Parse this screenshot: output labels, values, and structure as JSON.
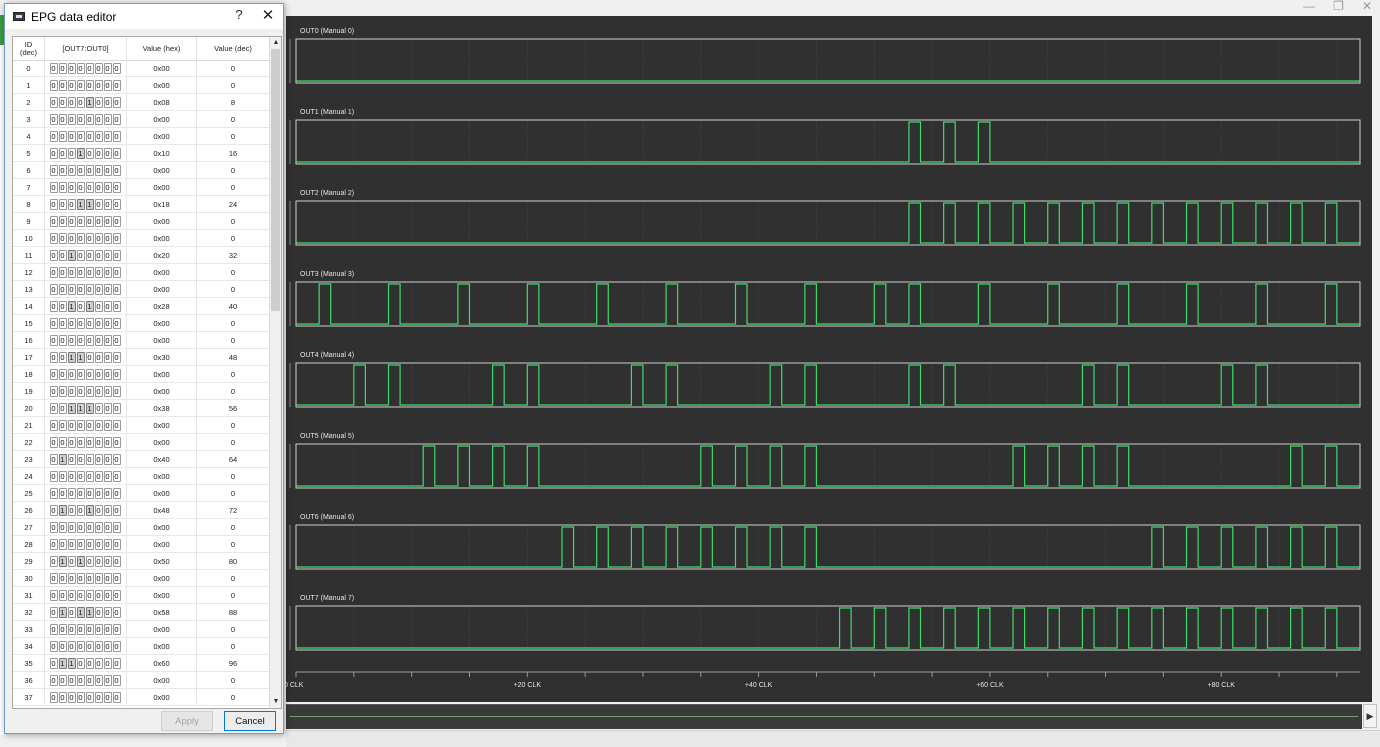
{
  "window": {
    "controls": [
      "—",
      "❐",
      "✕"
    ]
  },
  "dialog": {
    "title": "EPG data editor",
    "help_label": "?",
    "close_label": "✕",
    "columns": {
      "id_top": "ID",
      "id_bottom": "(dec)",
      "bits": "[OUT7:OUT0]",
      "hex": "Value (hex)",
      "dec": "Value (dec)"
    },
    "rows": [
      {
        "id": "0",
        "bits": [
          0,
          0,
          0,
          0,
          0,
          0,
          0,
          0
        ],
        "hex": "0x00",
        "dec": "0"
      },
      {
        "id": "1",
        "bits": [
          0,
          0,
          0,
          0,
          0,
          0,
          0,
          0
        ],
        "hex": "0x00",
        "dec": "0"
      },
      {
        "id": "2",
        "bits": [
          0,
          0,
          0,
          0,
          1,
          0,
          0,
          0
        ],
        "hex": "0x08",
        "dec": "8"
      },
      {
        "id": "3",
        "bits": [
          0,
          0,
          0,
          0,
          0,
          0,
          0,
          0
        ],
        "hex": "0x00",
        "dec": "0"
      },
      {
        "id": "4",
        "bits": [
          0,
          0,
          0,
          0,
          0,
          0,
          0,
          0
        ],
        "hex": "0x00",
        "dec": "0"
      },
      {
        "id": "5",
        "bits": [
          0,
          0,
          0,
          1,
          0,
          0,
          0,
          0
        ],
        "hex": "0x10",
        "dec": "16"
      },
      {
        "id": "6",
        "bits": [
          0,
          0,
          0,
          0,
          0,
          0,
          0,
          0
        ],
        "hex": "0x00",
        "dec": "0"
      },
      {
        "id": "7",
        "bits": [
          0,
          0,
          0,
          0,
          0,
          0,
          0,
          0
        ],
        "hex": "0x00",
        "dec": "0"
      },
      {
        "id": "8",
        "bits": [
          0,
          0,
          0,
          1,
          1,
          0,
          0,
          0
        ],
        "hex": "0x18",
        "dec": "24"
      },
      {
        "id": "9",
        "bits": [
          0,
          0,
          0,
          0,
          0,
          0,
          0,
          0
        ],
        "hex": "0x00",
        "dec": "0"
      },
      {
        "id": "10",
        "bits": [
          0,
          0,
          0,
          0,
          0,
          0,
          0,
          0
        ],
        "hex": "0x00",
        "dec": "0"
      },
      {
        "id": "11",
        "bits": [
          0,
          0,
          1,
          0,
          0,
          0,
          0,
          0
        ],
        "hex": "0x20",
        "dec": "32"
      },
      {
        "id": "12",
        "bits": [
          0,
          0,
          0,
          0,
          0,
          0,
          0,
          0
        ],
        "hex": "0x00",
        "dec": "0"
      },
      {
        "id": "13",
        "bits": [
          0,
          0,
          0,
          0,
          0,
          0,
          0,
          0
        ],
        "hex": "0x00",
        "dec": "0"
      },
      {
        "id": "14",
        "bits": [
          0,
          0,
          1,
          0,
          1,
          0,
          0,
          0
        ],
        "hex": "0x28",
        "dec": "40"
      },
      {
        "id": "15",
        "bits": [
          0,
          0,
          0,
          0,
          0,
          0,
          0,
          0
        ],
        "hex": "0x00",
        "dec": "0"
      },
      {
        "id": "16",
        "bits": [
          0,
          0,
          0,
          0,
          0,
          0,
          0,
          0
        ],
        "hex": "0x00",
        "dec": "0"
      },
      {
        "id": "17",
        "bits": [
          0,
          0,
          1,
          1,
          0,
          0,
          0,
          0
        ],
        "hex": "0x30",
        "dec": "48"
      },
      {
        "id": "18",
        "bits": [
          0,
          0,
          0,
          0,
          0,
          0,
          0,
          0
        ],
        "hex": "0x00",
        "dec": "0"
      },
      {
        "id": "19",
        "bits": [
          0,
          0,
          0,
          0,
          0,
          0,
          0,
          0
        ],
        "hex": "0x00",
        "dec": "0"
      },
      {
        "id": "20",
        "bits": [
          0,
          0,
          1,
          1,
          1,
          0,
          0,
          0
        ],
        "hex": "0x38",
        "dec": "56"
      },
      {
        "id": "21",
        "bits": [
          0,
          0,
          0,
          0,
          0,
          0,
          0,
          0
        ],
        "hex": "0x00",
        "dec": "0"
      },
      {
        "id": "22",
        "bits": [
          0,
          0,
          0,
          0,
          0,
          0,
          0,
          0
        ],
        "hex": "0x00",
        "dec": "0"
      },
      {
        "id": "23",
        "bits": [
          0,
          1,
          0,
          0,
          0,
          0,
          0,
          0
        ],
        "hex": "0x40",
        "dec": "64"
      },
      {
        "id": "24",
        "bits": [
          0,
          0,
          0,
          0,
          0,
          0,
          0,
          0
        ],
        "hex": "0x00",
        "dec": "0"
      },
      {
        "id": "25",
        "bits": [
          0,
          0,
          0,
          0,
          0,
          0,
          0,
          0
        ],
        "hex": "0x00",
        "dec": "0"
      },
      {
        "id": "26",
        "bits": [
          0,
          1,
          0,
          0,
          1,
          0,
          0,
          0
        ],
        "hex": "0x48",
        "dec": "72"
      },
      {
        "id": "27",
        "bits": [
          0,
          0,
          0,
          0,
          0,
          0,
          0,
          0
        ],
        "hex": "0x00",
        "dec": "0"
      },
      {
        "id": "28",
        "bits": [
          0,
          0,
          0,
          0,
          0,
          0,
          0,
          0
        ],
        "hex": "0x00",
        "dec": "0"
      },
      {
        "id": "29",
        "bits": [
          0,
          1,
          0,
          1,
          0,
          0,
          0,
          0
        ],
        "hex": "0x50",
        "dec": "80"
      },
      {
        "id": "30",
        "bits": [
          0,
          0,
          0,
          0,
          0,
          0,
          0,
          0
        ],
        "hex": "0x00",
        "dec": "0"
      },
      {
        "id": "31",
        "bits": [
          0,
          0,
          0,
          0,
          0,
          0,
          0,
          0
        ],
        "hex": "0x00",
        "dec": "0"
      },
      {
        "id": "32",
        "bits": [
          0,
          1,
          0,
          1,
          1,
          0,
          0,
          0
        ],
        "hex": "0x58",
        "dec": "88"
      },
      {
        "id": "33",
        "bits": [
          0,
          0,
          0,
          0,
          0,
          0,
          0,
          0
        ],
        "hex": "0x00",
        "dec": "0"
      },
      {
        "id": "34",
        "bits": [
          0,
          0,
          0,
          0,
          0,
          0,
          0,
          0
        ],
        "hex": "0x00",
        "dec": "0"
      },
      {
        "id": "35",
        "bits": [
          0,
          1,
          1,
          0,
          0,
          0,
          0,
          0
        ],
        "hex": "0x60",
        "dec": "96"
      },
      {
        "id": "36",
        "bits": [
          0,
          0,
          0,
          0,
          0,
          0,
          0,
          0
        ],
        "hex": "0x00",
        "dec": "0"
      },
      {
        "id": "37",
        "bits": [
          0,
          0,
          0,
          0,
          0,
          0,
          0,
          0
        ],
        "hex": "0x00",
        "dec": "0"
      }
    ],
    "apply_label": "Apply",
    "cancel_label": "Cancel"
  },
  "waveform": {
    "colors": {
      "background": "#303030",
      "plot_border": "#d0d0d0",
      "signal": "#3ddc6a",
      "grid": "#555555",
      "text": "#e6e6e6"
    },
    "channels": [
      {
        "label": "OUT0 (Manual 0)",
        "pulses": []
      },
      {
        "label": "OUT1 (Manual 1)",
        "pulses": [
          53,
          56,
          59
        ]
      },
      {
        "label": "OUT2 (Manual 2)",
        "pulses": [
          53,
          56,
          59,
          62,
          65,
          68,
          71,
          74,
          77,
          80,
          83,
          86,
          89
        ]
      },
      {
        "label": "OUT3 (Manual 3)",
        "pulses": [
          2,
          8,
          14,
          20,
          26,
          32,
          38,
          44,
          50,
          53,
          59,
          65,
          71,
          77,
          83,
          89
        ]
      },
      {
        "label": "OUT4 (Manual 4)",
        "pulses": [
          5,
          8,
          17,
          20,
          29,
          32,
          41,
          44,
          53,
          56,
          68,
          71,
          80,
          83
        ]
      },
      {
        "label": "OUT5 (Manual 5)",
        "pulses": [
          11,
          14,
          17,
          20,
          35,
          38,
          41,
          44,
          62,
          65,
          68,
          71,
          86,
          89
        ]
      },
      {
        "label": "OUT6 (Manual 6)",
        "pulses": [
          23,
          26,
          29,
          32,
          35,
          38,
          41,
          44,
          74,
          77,
          80,
          83,
          86,
          89
        ]
      },
      {
        "label": "OUT7 (Manual 7)",
        "pulses": [
          47,
          50,
          53,
          56,
          59,
          62,
          65,
          68,
          71,
          74,
          77,
          80,
          83,
          86,
          89
        ]
      }
    ],
    "axis_ticks": [
      {
        "label": "0 CLK",
        "clk": 0
      },
      {
        "label": "+20 CLK",
        "clk": 20
      },
      {
        "label": "+40 CLK",
        "clk": 40
      },
      {
        "label": "+60 CLK",
        "clk": 60
      },
      {
        "label": "+80 CLK",
        "clk": 80
      }
    ],
    "total_clk": 92
  }
}
